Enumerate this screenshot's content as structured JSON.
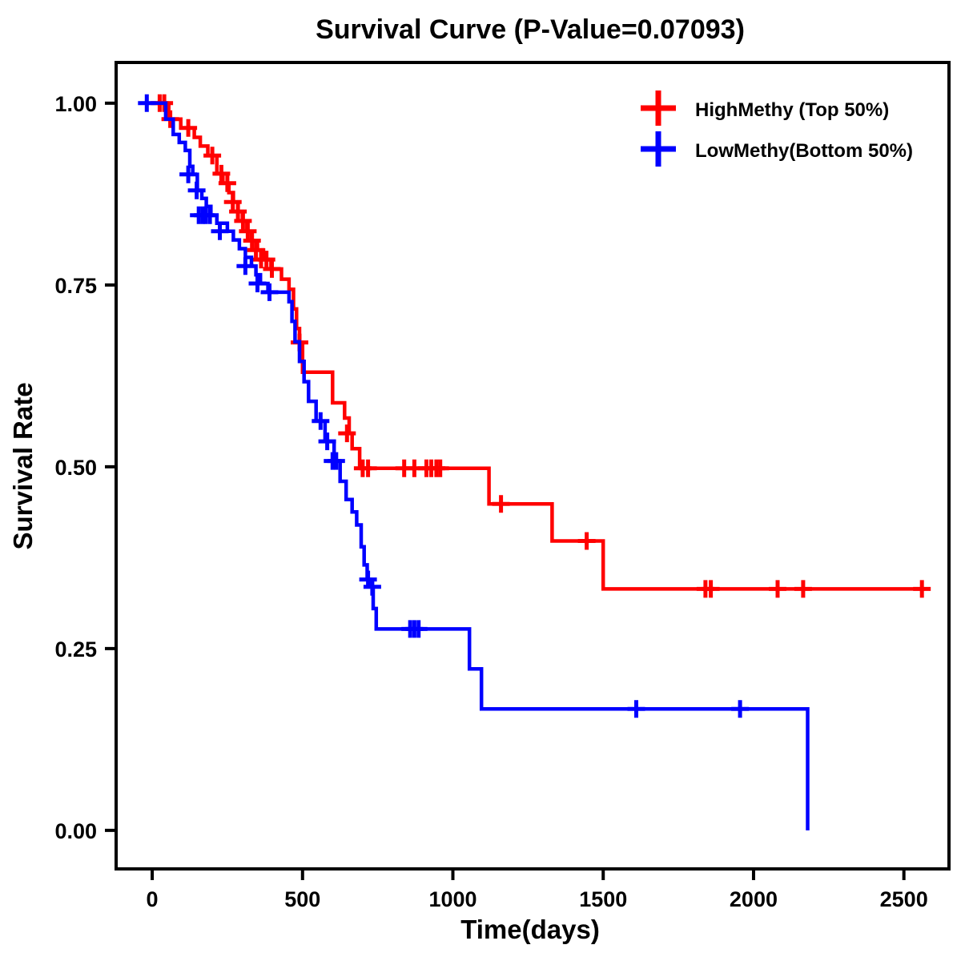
{
  "chart_data": {
    "type": "line",
    "subtype": "kaplan-meier-step-survival",
    "title": "Survival Curve (P-Value=0.07093)",
    "xlabel": "Time(days)",
    "ylabel": "Survival Rate",
    "xlim": [
      -120,
      2650
    ],
    "ylim": [
      -0.053,
      1.056
    ],
    "grid": false,
    "legend_position": "top-right-inside",
    "x_ticks": [
      {
        "value": 0,
        "label": "0"
      },
      {
        "value": 500,
        "label": "500"
      },
      {
        "value": 1000,
        "label": "1000"
      },
      {
        "value": 1500,
        "label": "1500"
      },
      {
        "value": 2000,
        "label": "2000"
      },
      {
        "value": 2500,
        "label": "2500"
      }
    ],
    "y_ticks": [
      {
        "value": 0.0,
        "label": "0.00"
      },
      {
        "value": 0.25,
        "label": "0.25"
      },
      {
        "value": 0.5,
        "label": "0.50"
      },
      {
        "value": 0.75,
        "label": "0.75"
      },
      {
        "value": 1.0,
        "label": "1.00"
      }
    ],
    "legend": [
      {
        "name": "HighMethy (Top 50%)",
        "color": "#FF0000"
      },
      {
        "name": "LowMethy(Bottom 50%)",
        "color": "#0000FF"
      }
    ],
    "series": [
      {
        "name": "HighMethy (Top 50%)",
        "slug": "highmethy",
        "color": "#FF0000",
        "steps": [
          [
            -25,
            1.0
          ],
          [
            55,
            0.978
          ],
          [
            95,
            0.966
          ],
          [
            140,
            0.953
          ],
          [
            160,
            0.941
          ],
          [
            185,
            0.928
          ],
          [
            215,
            0.903
          ],
          [
            235,
            0.89
          ],
          [
            255,
            0.877
          ],
          [
            270,
            0.864
          ],
          [
            285,
            0.851
          ],
          [
            300,
            0.838
          ],
          [
            315,
            0.824
          ],
          [
            330,
            0.811
          ],
          [
            350,
            0.798
          ],
          [
            370,
            0.785
          ],
          [
            395,
            0.772
          ],
          [
            430,
            0.758
          ],
          [
            455,
            0.744
          ],
          [
            470,
            0.717
          ],
          [
            480,
            0.69
          ],
          [
            490,
            0.671
          ],
          [
            500,
            0.63
          ],
          [
            600,
            0.588
          ],
          [
            640,
            0.567
          ],
          [
            655,
            0.546
          ],
          [
            665,
            0.525
          ],
          [
            690,
            0.498
          ],
          [
            1120,
            0.449
          ],
          [
            1330,
            0.398
          ],
          [
            1500,
            0.332
          ],
          [
            2570,
            0.332
          ]
        ],
        "censors": [
          [
            25,
            1.0
          ],
          [
            40,
            1.0
          ],
          [
            60,
            0.978
          ],
          [
            120,
            0.966
          ],
          [
            200,
            0.928
          ],
          [
            230,
            0.903
          ],
          [
            250,
            0.89
          ],
          [
            268,
            0.864
          ],
          [
            285,
            0.851
          ],
          [
            302,
            0.838
          ],
          [
            318,
            0.824
          ],
          [
            332,
            0.811
          ],
          [
            345,
            0.798
          ],
          [
            362,
            0.785
          ],
          [
            380,
            0.785
          ],
          [
            398,
            0.772
          ],
          [
            490,
            0.671
          ],
          [
            648,
            0.546
          ],
          [
            700,
            0.498
          ],
          [
            718,
            0.498
          ],
          [
            838,
            0.498
          ],
          [
            872,
            0.498
          ],
          [
            912,
            0.498
          ],
          [
            928,
            0.498
          ],
          [
            945,
            0.498
          ],
          [
            958,
            0.498
          ],
          [
            1160,
            0.449
          ],
          [
            1445,
            0.398
          ],
          [
            1840,
            0.332
          ],
          [
            1858,
            0.332
          ],
          [
            2080,
            0.332
          ],
          [
            2165,
            0.332
          ],
          [
            2560,
            0.332
          ]
        ]
      },
      {
        "name": "LowMethy(Bottom 50%)",
        "slug": "lowmethy",
        "color": "#0000FF",
        "steps": [
          [
            -25,
            1.0
          ],
          [
            45,
            0.978
          ],
          [
            70,
            0.957
          ],
          [
            90,
            0.946
          ],
          [
            110,
            0.935
          ],
          [
            125,
            0.913
          ],
          [
            135,
            0.902
          ],
          [
            150,
            0.88
          ],
          [
            165,
            0.869
          ],
          [
            180,
            0.858
          ],
          [
            195,
            0.846
          ],
          [
            215,
            0.835
          ],
          [
            250,
            0.824
          ],
          [
            270,
            0.812
          ],
          [
            290,
            0.8
          ],
          [
            310,
            0.788
          ],
          [
            330,
            0.776
          ],
          [
            345,
            0.764
          ],
          [
            360,
            0.752
          ],
          [
            385,
            0.74
          ],
          [
            455,
            0.727
          ],
          [
            465,
            0.7
          ],
          [
            475,
            0.672
          ],
          [
            490,
            0.645
          ],
          [
            505,
            0.617
          ],
          [
            520,
            0.59
          ],
          [
            545,
            0.563
          ],
          [
            575,
            0.535
          ],
          [
            605,
            0.508
          ],
          [
            625,
            0.48
          ],
          [
            645,
            0.455
          ],
          [
            665,
            0.438
          ],
          [
            680,
            0.42
          ],
          [
            695,
            0.39
          ],
          [
            705,
            0.365
          ],
          [
            715,
            0.345
          ],
          [
            725,
            0.335
          ],
          [
            735,
            0.305
          ],
          [
            745,
            0.277
          ],
          [
            1055,
            0.222
          ],
          [
            1095,
            0.167
          ],
          [
            2180,
            0.167
          ],
          [
            2180,
            0.0
          ]
        ],
        "censors": [
          [
            -18,
            1.0
          ],
          [
            120,
            0.902
          ],
          [
            148,
            0.88
          ],
          [
            155,
            0.846
          ],
          [
            168,
            0.846
          ],
          [
            178,
            0.846
          ],
          [
            192,
            0.846
          ],
          [
            225,
            0.824
          ],
          [
            310,
            0.776
          ],
          [
            350,
            0.752
          ],
          [
            390,
            0.74
          ],
          [
            560,
            0.563
          ],
          [
            582,
            0.535
          ],
          [
            600,
            0.508
          ],
          [
            612,
            0.508
          ],
          [
            718,
            0.345
          ],
          [
            732,
            0.335
          ],
          [
            858,
            0.277
          ],
          [
            872,
            0.277
          ],
          [
            886,
            0.277
          ],
          [
            1610,
            0.167
          ],
          [
            1955,
            0.167
          ]
        ]
      }
    ]
  }
}
